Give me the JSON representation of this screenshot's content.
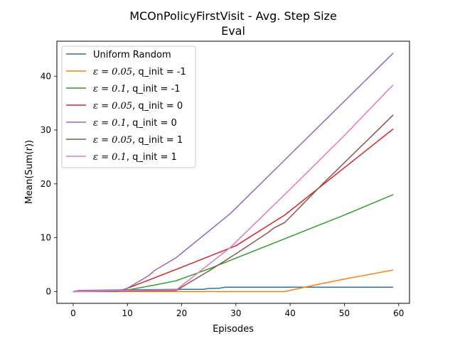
{
  "chart_data": {
    "type": "line",
    "title": "MCOnPolicyFirstVisit - Avg. Step Size",
    "subtitle": "Eval",
    "xlabel": "Episodes",
    "ylabel": "Mean(Sum(r))",
    "xlim": [
      -3,
      62
    ],
    "ylim": [
      -2.2,
      46.5
    ],
    "xticks": [
      0,
      10,
      20,
      30,
      40,
      50,
      60
    ],
    "yticks": [
      0,
      10,
      20,
      30,
      40
    ],
    "grid": false,
    "legend_position": "top-left",
    "series": [
      {
        "name": "Uniform Random",
        "color": "#1f77b4",
        "x": [
          0,
          1,
          5,
          10,
          15,
          20,
          24,
          25,
          27,
          28,
          30,
          40,
          50,
          59
        ],
        "y": [
          0,
          0.1,
          0.2,
          0.3,
          0.35,
          0.4,
          0.4,
          0.55,
          0.6,
          0.8,
          0.8,
          0.8,
          0.8,
          0.8
        ]
      },
      {
        "name": "$\\epsilon = 0.05$, q_init = -1",
        "color": "#ff7f0e",
        "x": [
          0,
          10,
          20,
          30,
          39,
          45,
          50,
          59
        ],
        "y": [
          0,
          0,
          0,
          0,
          0,
          1.3,
          2.3,
          4.0
        ]
      },
      {
        "name": "$\\epsilon = 0.1$, q_init = -1",
        "color": "#2ca02c",
        "x": [
          0,
          8,
          9,
          15,
          19,
          25,
          30,
          40,
          50,
          59
        ],
        "y": [
          0,
          0,
          0.1,
          1.2,
          2.0,
          4.2,
          6.2,
          10.2,
          14.2,
          18.0
        ]
      },
      {
        "name": "$\\epsilon = 0.05$, q_init = 0",
        "color": "#d62728",
        "x": [
          0,
          5,
          9,
          20,
          30,
          39,
          50,
          59
        ],
        "y": [
          0,
          0.1,
          0.2,
          4.5,
          8.5,
          14.2,
          23.0,
          30.2
        ]
      },
      {
        "name": "$\\epsilon = 0.1$, q_init = 0",
        "color": "#9467bd",
        "x": [
          0,
          1,
          9,
          10,
          14,
          15,
          19,
          29,
          59
        ],
        "y": [
          0,
          0.2,
          0.3,
          0.6,
          3.0,
          3.9,
          6.3,
          14.5,
          44.3
        ]
      },
      {
        "name": "$\\epsilon = 0.05$, q_init = 1",
        "color": "#8c564b",
        "x": [
          0,
          10,
          19,
          25,
          30,
          36,
          37,
          39,
          46,
          59
        ],
        "y": [
          0,
          0.1,
          0.2,
          3.8,
          7.0,
          11.0,
          11.8,
          12.8,
          20.0,
          32.8
        ]
      },
      {
        "name": "$\\epsilon = 0.1$, q_init = 1",
        "color": "#e377c2",
        "x": [
          0,
          10,
          19,
          29,
          40,
          50,
          59
        ],
        "y": [
          0,
          0.2,
          0.3,
          8.2,
          19.0,
          29.0,
          38.4
        ]
      }
    ],
    "legend_entries": [
      {
        "prefix": "",
        "math": "",
        "suffix": "Uniform Random"
      },
      {
        "prefix": "",
        "math": "ε = 0.05",
        "suffix": ", q_init = -1"
      },
      {
        "prefix": "",
        "math": "ε = 0.1",
        "suffix": ", q_init = -1"
      },
      {
        "prefix": "",
        "math": "ε = 0.05",
        "suffix": ", q_init = 0"
      },
      {
        "prefix": "",
        "math": "ε = 0.1",
        "suffix": ", q_init = 0"
      },
      {
        "prefix": "",
        "math": "ε = 0.05",
        "suffix": ", q_init = 1"
      },
      {
        "prefix": "",
        "math": "ε = 0.1",
        "suffix": ", q_init = 1"
      }
    ]
  }
}
